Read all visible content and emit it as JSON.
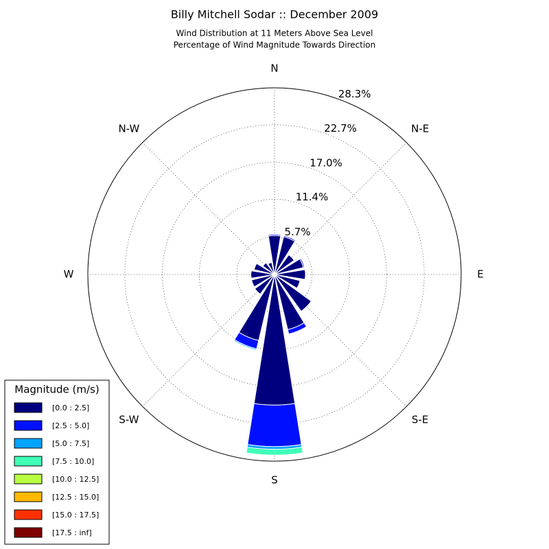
{
  "chart_data": {
    "type": "windrose",
    "title": "Billy Mitchell Sodar :: December 2009",
    "subtitle": [
      "Wind Distribution at 11 Meters Above Sea Level",
      "Percentage of Wind Magnitude Towards Direction"
    ],
    "categories": [
      "N",
      null,
      "N-E",
      null,
      "E",
      null,
      "S-E",
      null,
      "S",
      null,
      "S-W",
      null,
      "W",
      null,
      "N-W",
      null
    ],
    "rlim": [
      0,
      28.3
    ],
    "rticks": [
      {
        "value": 5.7,
        "label": "5.7%"
      },
      {
        "value": 11.4,
        "label": "11.4%"
      },
      {
        "value": 17.0,
        "label": "17.0%"
      },
      {
        "value": 22.7,
        "label": "22.7%"
      },
      {
        "value": 28.3,
        "label": "28.3%"
      }
    ],
    "grid": true,
    "legend_title": "Magnitude (m/s)",
    "legend_position": "lower left",
    "series": [
      {
        "name": "[0.0 : 2.5]",
        "color": "#00007f",
        "values": [
          5.9,
          5.9,
          3.7,
          4.5,
          4.7,
          4.0,
          6.9,
          8.6,
          19.8,
          10.3,
          3.7,
          3.6,
          3.6,
          3.2,
          2.2,
          1.9
        ]
      },
      {
        "name": "[2.5 : 5.0]",
        "color": "#0010ff",
        "values": [
          0.2,
          0.2,
          0,
          0.2,
          0,
          0,
          0.1,
          0.7,
          6.3,
          1.3,
          0,
          0,
          0,
          0,
          0,
          0
        ]
      },
      {
        "name": "[5.0 : 7.5]",
        "color": "#00a4ff",
        "values": [
          0,
          0,
          0,
          0,
          0,
          0,
          0,
          0,
          0.4,
          0.2,
          0,
          0,
          0,
          0,
          0,
          0
        ]
      },
      {
        "name": "[7.5 : 10.0]",
        "color": "#40ffb7",
        "values": [
          0,
          0,
          0,
          0,
          0,
          0,
          0,
          0,
          0.9,
          0,
          0,
          0,
          0,
          0,
          0,
          0
        ]
      },
      {
        "name": "[10.0 : 12.5]",
        "color": "#b7ff40",
        "values": [
          0,
          0,
          0,
          0,
          0,
          0,
          0,
          0,
          0,
          0,
          0,
          0,
          0,
          0,
          0,
          0
        ]
      },
      {
        "name": "[12.5 : 15.0]",
        "color": "#ffb900",
        "values": [
          0,
          0,
          0,
          0,
          0,
          0,
          0,
          0,
          0,
          0,
          0,
          0,
          0,
          0,
          0,
          0
        ]
      },
      {
        "name": "[15.0 : 17.5]",
        "color": "#ff3000",
        "values": [
          0,
          0,
          0,
          0,
          0,
          0,
          0,
          0,
          0,
          0,
          0,
          0,
          0,
          0,
          0,
          0
        ]
      },
      {
        "name": "[17.5 : inf]",
        "color": "#7f0000",
        "values": [
          0,
          0,
          0,
          0,
          0,
          0,
          0,
          0,
          0,
          0,
          0,
          0,
          0,
          0,
          0,
          0
        ]
      }
    ]
  }
}
